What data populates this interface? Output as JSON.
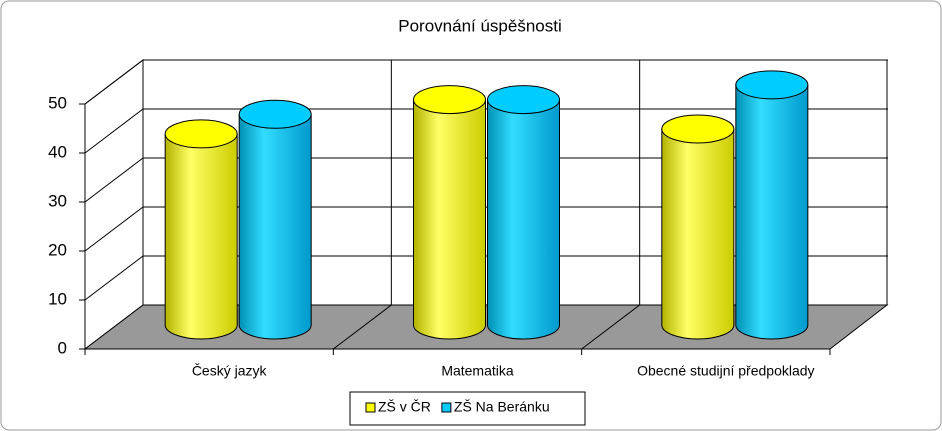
{
  "chart_data": {
    "type": "bar3d",
    "title": "Porovnání úspěšnosti",
    "categories": [
      "Český jazyk",
      "Matematika",
      "Obecné studijní předpoklady"
    ],
    "series": [
      {
        "name": "ZŠ v ČR",
        "color": "#ffff00",
        "values": [
          39,
          46,
          40
        ]
      },
      {
        "name": "ZŠ Na Beránku",
        "color": "#00ccff",
        "values": [
          43,
          46,
          49
        ]
      }
    ],
    "ylim": [
      0,
      50
    ],
    "yticks": [
      0,
      10,
      20,
      30,
      40,
      50
    ],
    "grid": true,
    "legend": "bottom"
  }
}
